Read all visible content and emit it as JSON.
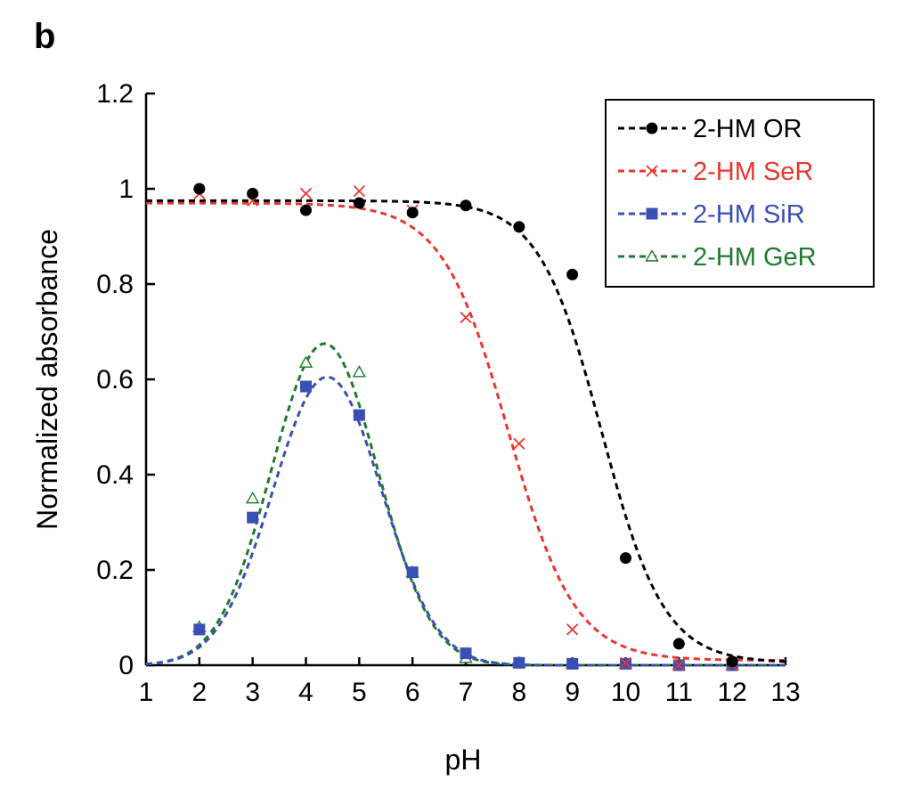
{
  "panel_label": "b",
  "chart_data": {
    "type": "scatter",
    "xlabel": "pH",
    "ylabel": "Normalized absorbance",
    "xlim": [
      1,
      13
    ],
    "ylim": [
      0,
      1.2
    ],
    "x_ticks": [
      1,
      2,
      3,
      4,
      5,
      6,
      7,
      8,
      9,
      10,
      11,
      12,
      13
    ],
    "y_ticks": [
      {
        "value": 0,
        "label": "0"
      },
      {
        "value": 0.2,
        "label": "0.2"
      },
      {
        "value": 0.4,
        "label": "0.4"
      },
      {
        "value": 0.6,
        "label": "0.6"
      },
      {
        "value": 0.8,
        "label": "0.8"
      },
      {
        "value": 1.0,
        "label": "1"
      },
      {
        "value": 1.2,
        "label": "1.2"
      }
    ],
    "grid": false,
    "legend_position": "top-right",
    "series": [
      {
        "name": "2-HM OR",
        "color": "#000000",
        "marker": "circle",
        "points": [
          [
            2,
            1.0
          ],
          [
            3,
            0.99
          ],
          [
            4,
            0.955
          ],
          [
            5,
            0.97
          ],
          [
            6,
            0.95
          ],
          [
            7,
            0.965
          ],
          [
            8,
            0.92
          ],
          [
            9,
            0.82
          ],
          [
            10,
            0.225
          ],
          [
            11,
            0.045
          ],
          [
            12,
            0.008
          ]
        ],
        "fit": {
          "model": "sigmoid",
          "top": 0.975,
          "bottom": 0.005,
          "pKa": 9.55,
          "slope": 1.7
        }
      },
      {
        "name": "2-HM SeR",
        "color": "#e8372e",
        "marker": "cross",
        "points": [
          [
            2,
            0.99
          ],
          [
            3,
            0.975
          ],
          [
            4,
            0.99
          ],
          [
            5,
            0.995
          ],
          [
            6,
            0.955
          ],
          [
            7,
            0.73
          ],
          [
            8,
            0.465
          ],
          [
            9,
            0.075
          ],
          [
            10,
            0.005
          ],
          [
            11,
            0.0
          ],
          [
            12,
            0.0
          ]
        ],
        "fit": {
          "model": "sigmoid",
          "top": 0.97,
          "bottom": 0.01,
          "pKa": 7.8,
          "slope": 1.6
        }
      },
      {
        "name": "2-HM SiR",
        "color": "#3a4fb4",
        "marker": "square",
        "points": [
          [
            2,
            0.075
          ],
          [
            3,
            0.31
          ],
          [
            4,
            0.585
          ],
          [
            5,
            0.525
          ],
          [
            6,
            0.195
          ],
          [
            7,
            0.025
          ],
          [
            8,
            0.005
          ],
          [
            9,
            0.003
          ],
          [
            10,
            0.003
          ],
          [
            11,
            0.0
          ],
          [
            12,
            0.0
          ]
        ],
        "fit": {
          "model": "bell",
          "amplitude": 0.605,
          "center": 4.4,
          "sigma": 1.02,
          "baseline": 0.0
        }
      },
      {
        "name": "2-HM GeR",
        "color": "#1f7a2e",
        "marker": "triangle",
        "points": [
          [
            2,
            0.08
          ],
          [
            3,
            0.35
          ],
          [
            4,
            0.635
          ],
          [
            5,
            0.615
          ],
          [
            6,
            0.195
          ],
          [
            7,
            0.015
          ],
          [
            8,
            0.005
          ],
          [
            9,
            0.003
          ],
          [
            10,
            0.003
          ],
          [
            11,
            0.0
          ],
          [
            12,
            0.0
          ]
        ],
        "fit": {
          "model": "bell",
          "amplitude": 0.675,
          "center": 4.35,
          "sigma": 1.0,
          "baseline": 0.0
        }
      }
    ]
  }
}
